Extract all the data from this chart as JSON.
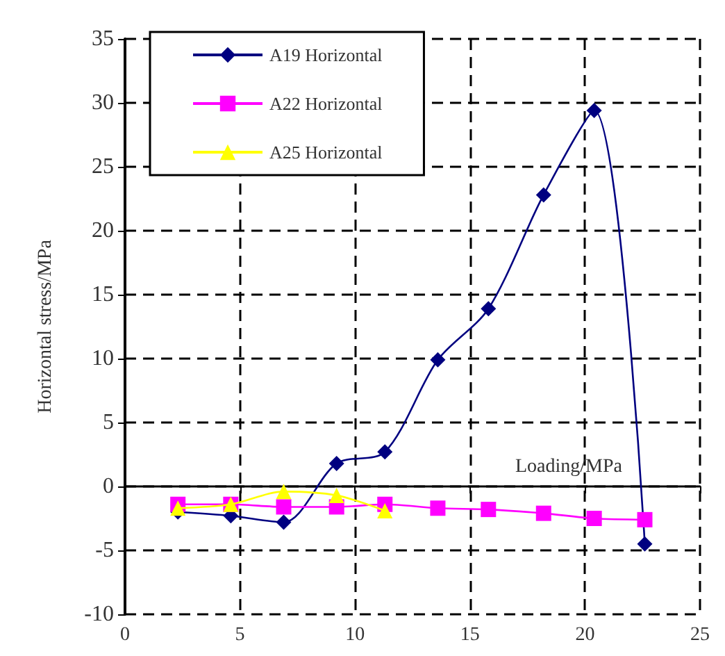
{
  "chart_data": {
    "type": "line",
    "xlabel": "Loading/MPa",
    "ylabel": "Horizontal stress/MPa",
    "xlim": [
      0,
      25
    ],
    "xticks": [
      0,
      5,
      10,
      15,
      20,
      25
    ],
    "ylim": [
      -10,
      35
    ],
    "yticks": [
      -10,
      -5,
      0,
      5,
      10,
      15,
      20,
      25,
      30,
      35
    ],
    "grid": true,
    "legend": "top left",
    "line_style": "solid",
    "series": [
      {
        "name": "A19 Horizontal",
        "color": "#000080",
        "marker": "diamond",
        "x": [
          2.3,
          4.6,
          6.9,
          9.2,
          11.3,
          13.6,
          15.8,
          18.2,
          20.4,
          22.6
        ],
        "values": [
          -2.0,
          -2.3,
          -2.8,
          1.8,
          2.7,
          9.9,
          13.9,
          22.8,
          29.4,
          -4.5
        ]
      },
      {
        "name": "A22 Horizontal",
        "color": "#ff00ff",
        "marker": "square",
        "x": [
          2.3,
          4.6,
          6.9,
          9.2,
          11.3,
          13.6,
          15.8,
          18.2,
          20.4,
          22.6
        ],
        "values": [
          -1.4,
          -1.4,
          -1.6,
          -1.6,
          -1.4,
          -1.7,
          -1.8,
          -2.1,
          -2.5,
          -2.6
        ]
      },
      {
        "name": "A25 Horizontal",
        "color": "#ffff00",
        "marker": "triangle",
        "x": [
          2.3,
          4.6,
          6.9,
          9.2,
          11.3
        ],
        "values": [
          -1.7,
          -1.4,
          -0.4,
          -0.7,
          -1.9
        ]
      }
    ]
  }
}
